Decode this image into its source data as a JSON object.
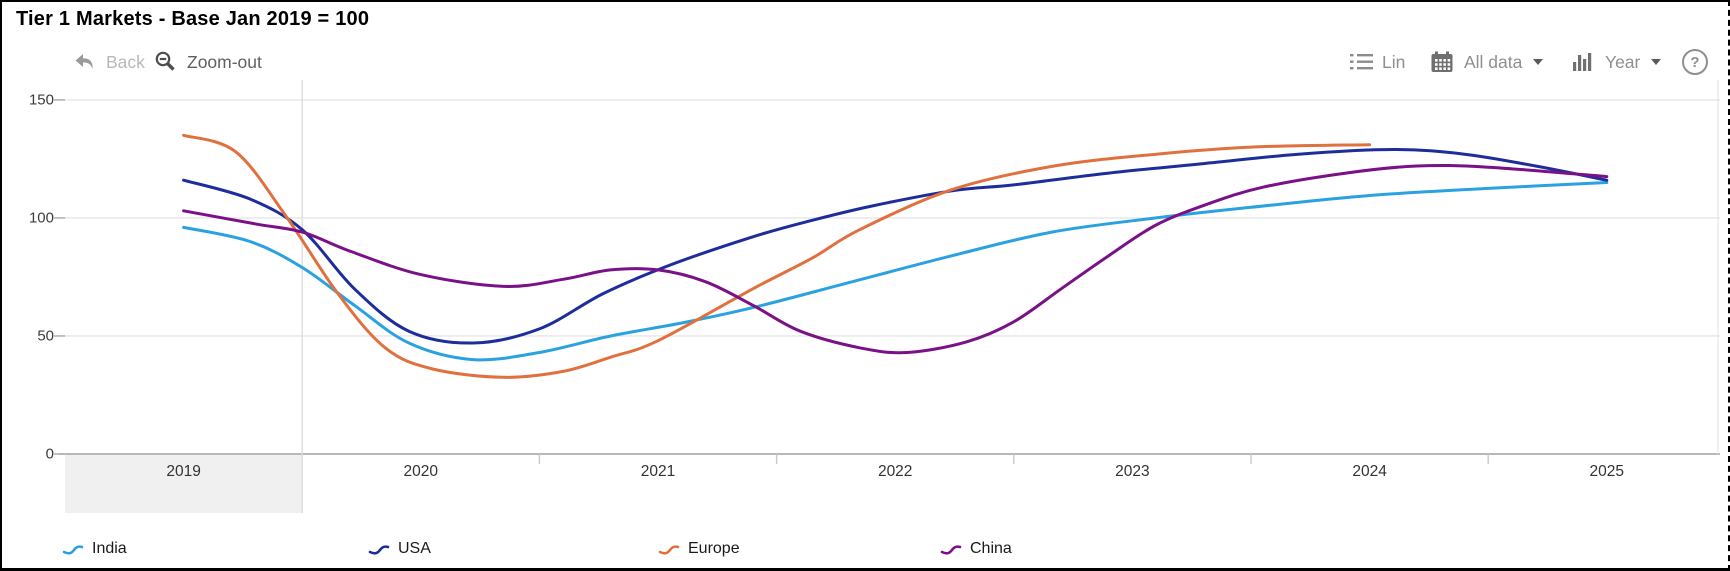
{
  "title": "Tier 1 Markets - Base Jan 2019 = 100",
  "toolbar": {
    "back_label": "Back",
    "zoom_out_label": "Zoom-out",
    "lin_label": "Lin",
    "all_data_label": "All data",
    "year_label": "Year",
    "help_label": "?"
  },
  "colors": {
    "india": "#2BA2E0",
    "usa": "#1E2D9C",
    "europe": "#E0713F",
    "china": "#7A1187",
    "gridline": "#e5e5e5",
    "axis_line": "#a0a0a0",
    "highlight_band": "#f0f0f0"
  },
  "chart_data": {
    "type": "line",
    "title": "Tier 1 Markets - Base Jan 2019 = 100",
    "x_axis": {
      "labels": [
        "2019",
        "2020",
        "2021",
        "2022",
        "2023",
        "2024",
        "2025"
      ],
      "start_year": 2019,
      "highlighted_cell": "2019",
      "full_gridline_year": 2020
    },
    "y_axis": {
      "ticks": [
        150,
        100,
        50,
        0
      ],
      "range": [
        0,
        158
      ],
      "grid": "horizontal"
    },
    "legend_position": "bottom",
    "series": [
      {
        "name": "India",
        "color": "#2BA2E0",
        "points": [
          [
            2019.5,
            96
          ],
          [
            2019.78,
            90
          ],
          [
            2020.0,
            79
          ],
          [
            2020.22,
            63
          ],
          [
            2020.45,
            47
          ],
          [
            2020.72,
            40
          ],
          [
            2021.0,
            43
          ],
          [
            2021.3,
            50
          ],
          [
            2021.6,
            55.5
          ],
          [
            2021.9,
            62
          ],
          [
            2022.32,
            73
          ],
          [
            2022.74,
            84
          ],
          [
            2023.16,
            94
          ],
          [
            2023.6,
            100
          ],
          [
            2024.0,
            104.5
          ],
          [
            2024.5,
            109.5
          ],
          [
            2025.0,
            112.5
          ],
          [
            2025.5,
            115
          ]
        ]
      },
      {
        "name": "USA",
        "color": "#1E2D9C",
        "points": [
          [
            2019.5,
            116
          ],
          [
            2019.78,
            108
          ],
          [
            2020.0,
            95
          ],
          [
            2020.22,
            70
          ],
          [
            2020.45,
            52
          ],
          [
            2020.72,
            47
          ],
          [
            2021.0,
            53
          ],
          [
            2021.27,
            68
          ],
          [
            2021.55,
            80
          ],
          [
            2021.9,
            92
          ],
          [
            2022.15,
            99
          ],
          [
            2022.4,
            105
          ],
          [
            2022.74,
            111.5
          ],
          [
            2023.0,
            114
          ],
          [
            2023.4,
            119
          ],
          [
            2023.8,
            123
          ],
          [
            2024.2,
            127
          ],
          [
            2024.6,
            129
          ],
          [
            2024.9,
            127
          ],
          [
            2025.2,
            122
          ],
          [
            2025.5,
            116
          ]
        ]
      },
      {
        "name": "Europe",
        "color": "#E0713F",
        "points": [
          [
            2019.5,
            135
          ],
          [
            2019.72,
            128
          ],
          [
            2019.93,
            101
          ],
          [
            2020.15,
            68
          ],
          [
            2020.35,
            45
          ],
          [
            2020.55,
            36
          ],
          [
            2020.85,
            32.5
          ],
          [
            2021.1,
            35
          ],
          [
            2021.3,
            41
          ],
          [
            2021.5,
            48
          ],
          [
            2021.9,
            70
          ],
          [
            2022.15,
            83
          ],
          [
            2022.35,
            95
          ],
          [
            2022.74,
            112
          ],
          [
            2023.17,
            122
          ],
          [
            2023.6,
            127
          ],
          [
            2024.0,
            130
          ],
          [
            2024.5,
            131
          ]
        ]
      },
      {
        "name": "China",
        "color": "#7A1187",
        "points": [
          [
            2019.5,
            103
          ],
          [
            2019.8,
            97.5
          ],
          [
            2020.0,
            94
          ],
          [
            2020.2,
            86
          ],
          [
            2020.5,
            76
          ],
          [
            2020.85,
            71
          ],
          [
            2021.1,
            74
          ],
          [
            2021.3,
            78
          ],
          [
            2021.5,
            78
          ],
          [
            2021.7,
            73
          ],
          [
            2021.9,
            63
          ],
          [
            2022.1,
            52
          ],
          [
            2022.35,
            45
          ],
          [
            2022.55,
            43
          ],
          [
            2022.8,
            47.5
          ],
          [
            2023.0,
            56
          ],
          [
            2023.2,
            70
          ],
          [
            2023.4,
            84
          ],
          [
            2023.6,
            97
          ],
          [
            2023.82,
            106
          ],
          [
            2024.05,
            113
          ],
          [
            2024.4,
            119
          ],
          [
            2024.7,
            122
          ],
          [
            2025.0,
            121.5
          ],
          [
            2025.5,
            117.5
          ]
        ]
      }
    ]
  }
}
